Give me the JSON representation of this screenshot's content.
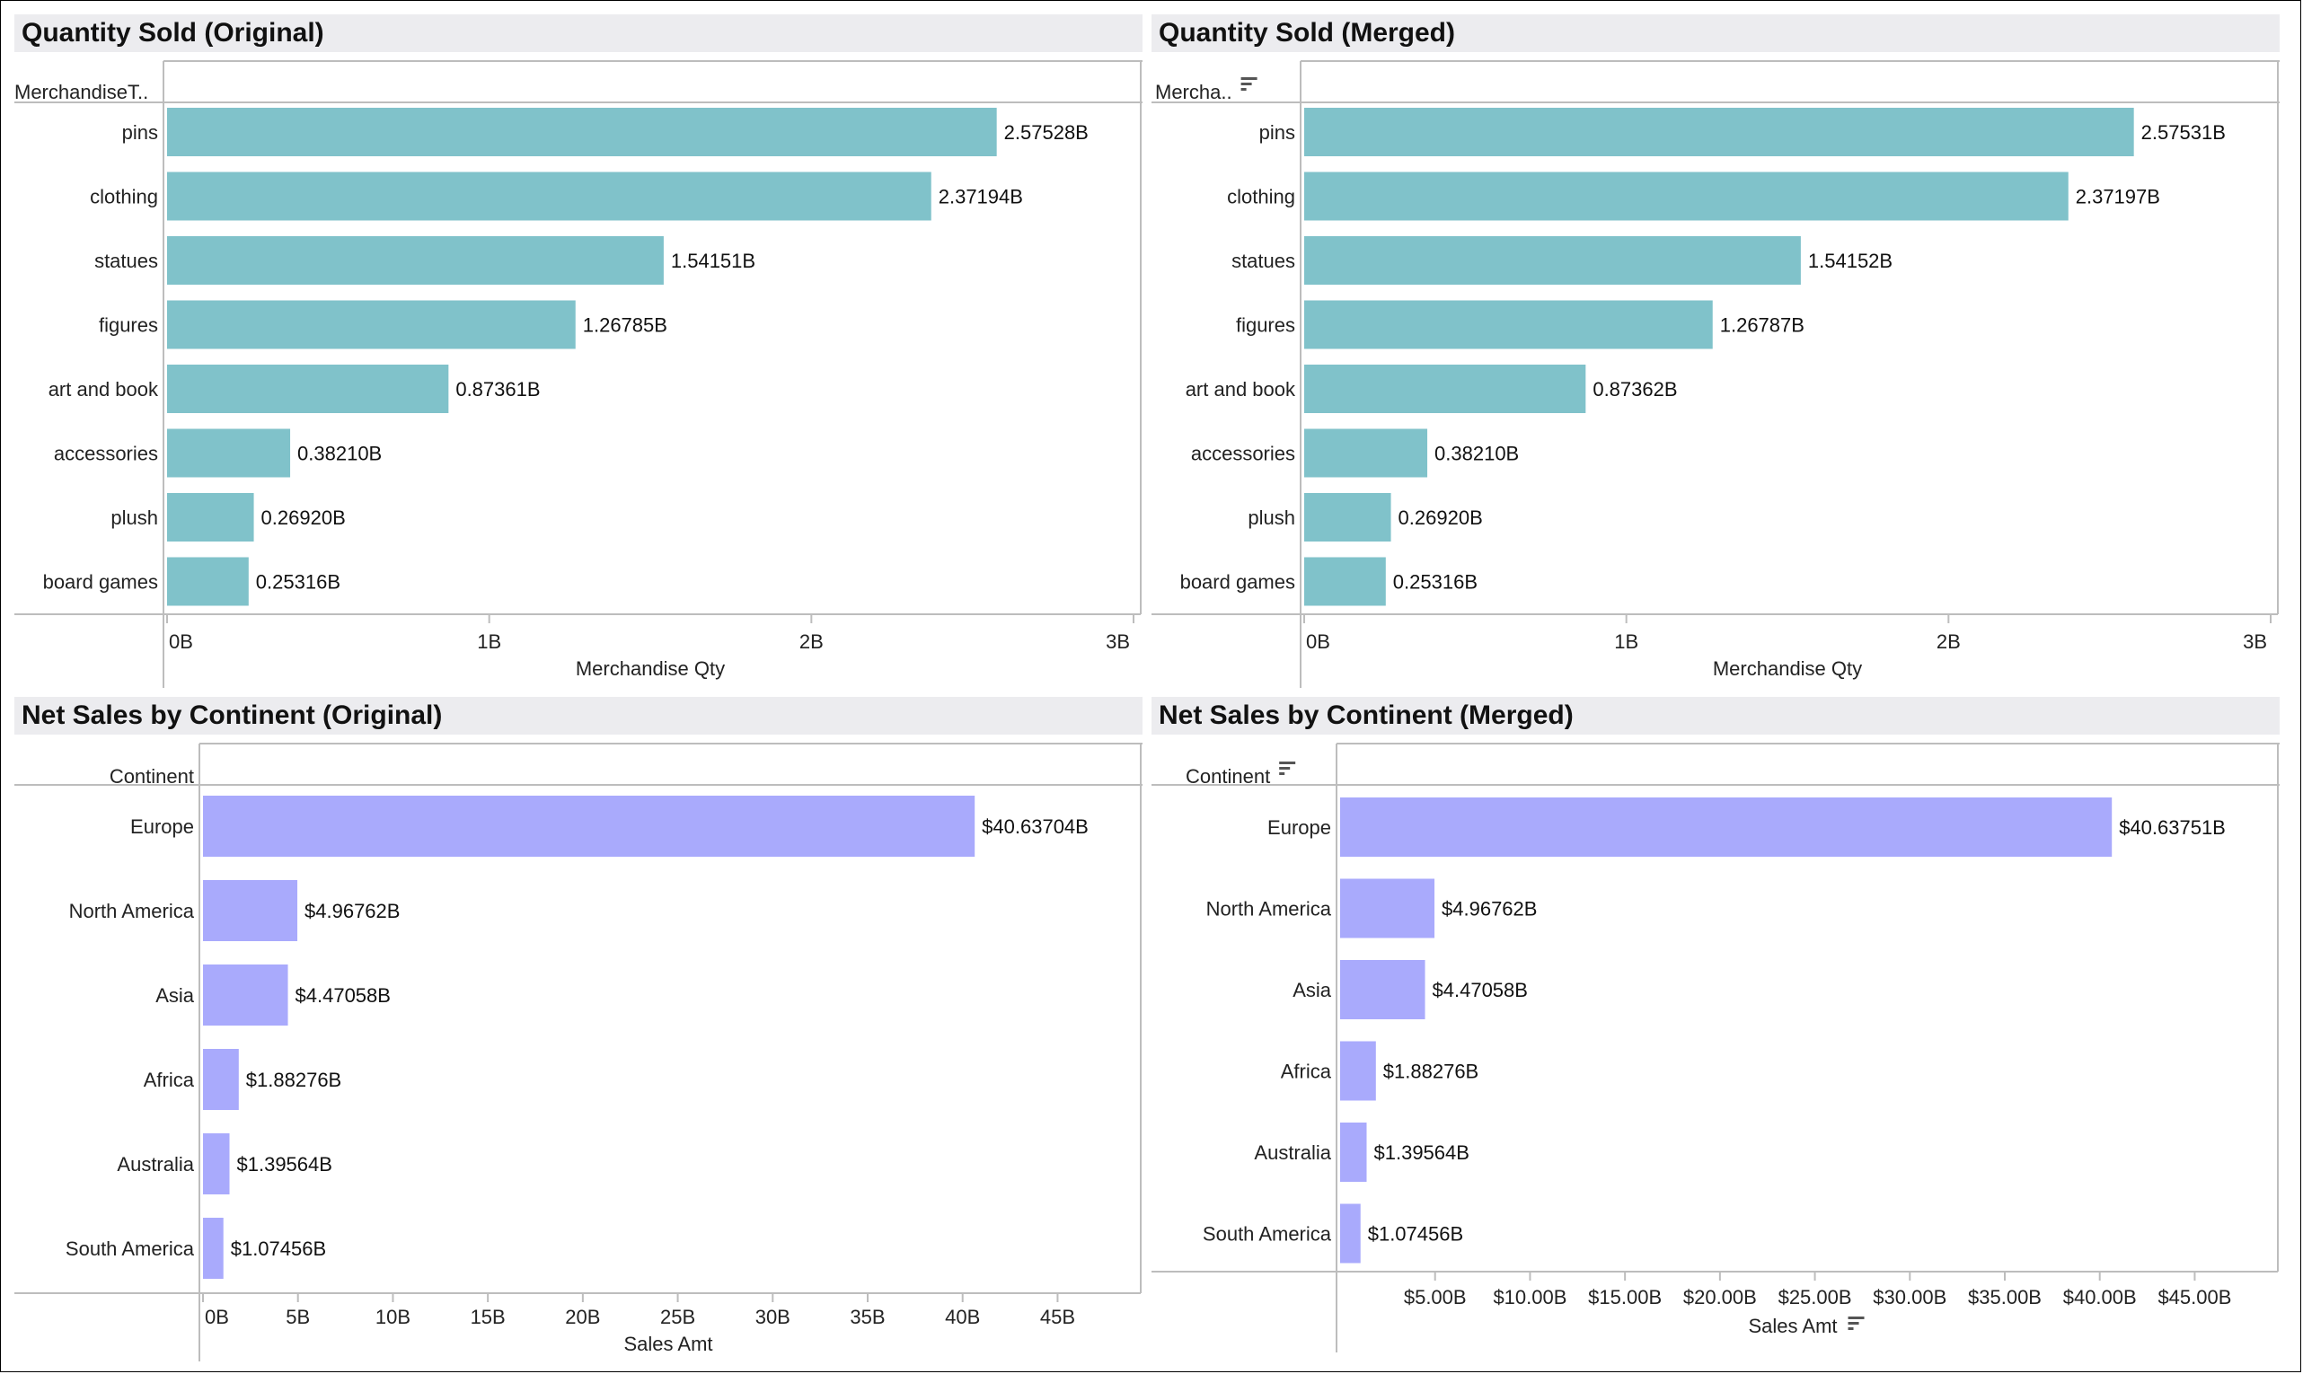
{
  "chart_data": [
    {
      "id": "qty-original",
      "type": "bar",
      "title": "Quantity Sold (Original)",
      "header": "MerchandiseT..",
      "header_sort_icon": false,
      "categories": [
        "pins",
        "clothing",
        "statues",
        "figures",
        "art and book",
        "accessories",
        "plush",
        "board games"
      ],
      "values": [
        2.57528,
        2.37194,
        1.54151,
        1.26785,
        0.87361,
        0.3821,
        0.2692,
        0.25316
      ],
      "value_labels": [
        "2.57528B",
        "2.37194B",
        "1.54151B",
        "1.26785B",
        "0.87361B",
        "0.38210B",
        "0.26920B",
        "0.25316B"
      ],
      "xlabel": "Merchandise Qty",
      "xlabel_sort_icon": false,
      "xlim": [
        0,
        3
      ],
      "ticks": [
        0,
        1,
        2,
        3
      ],
      "tick_labels": [
        "0B",
        "1B",
        "2B",
        "3B"
      ],
      "bar_color": "#80c2ca",
      "grid": false
    },
    {
      "id": "qty-merged",
      "type": "bar",
      "title": "Quantity Sold (Merged)",
      "header": "Mercha..",
      "header_sort_icon": true,
      "categories": [
        "pins",
        "clothing",
        "statues",
        "figures",
        "art and book",
        "accessories",
        "plush",
        "board games"
      ],
      "values": [
        2.57531,
        2.37197,
        1.54152,
        1.26787,
        0.87362,
        0.3821,
        0.2692,
        0.25316
      ],
      "value_labels": [
        "2.57531B",
        "2.37197B",
        "1.54152B",
        "1.26787B",
        "0.87362B",
        "0.38210B",
        "0.26920B",
        "0.25316B"
      ],
      "xlabel": "Merchandise Qty",
      "xlabel_sort_icon": false,
      "xlim": [
        0,
        3
      ],
      "ticks": [
        0,
        1,
        2,
        3
      ],
      "tick_labels": [
        "0B",
        "1B",
        "2B",
        "3B"
      ],
      "bar_color": "#80c2ca",
      "grid": false
    },
    {
      "id": "sales-original",
      "type": "bar",
      "title": "Net Sales by Continent (Original)",
      "header": "Continent",
      "header_sort_icon": false,
      "categories": [
        "Europe",
        "North America",
        "Asia",
        "Africa",
        "Australia",
        "South America"
      ],
      "values": [
        40.63704,
        4.96762,
        4.47058,
        1.88276,
        1.39564,
        1.07456
      ],
      "value_labels": [
        "$40.63704B",
        "$4.96762B",
        "$4.47058B",
        "$1.88276B",
        "$1.39564B",
        "$1.07456B"
      ],
      "xlabel": "Sales Amt",
      "xlabel_sort_icon": false,
      "xlim": [
        0,
        49
      ],
      "ticks": [
        0,
        5,
        10,
        15,
        20,
        25,
        30,
        35,
        40,
        45
      ],
      "tick_labels": [
        "0B",
        "5B",
        "10B",
        "15B",
        "20B",
        "25B",
        "30B",
        "35B",
        "40B",
        "45B"
      ],
      "bar_color": "#a9aafc",
      "grid": false
    },
    {
      "id": "sales-merged",
      "type": "bar",
      "title": "Net Sales by Continent (Merged)",
      "header": "Continent",
      "header_sort_icon": true,
      "categories": [
        "Europe",
        "North America",
        "Asia",
        "Africa",
        "Australia",
        "South America"
      ],
      "values": [
        40.63751,
        4.96762,
        4.47058,
        1.88276,
        1.39564,
        1.07456
      ],
      "value_labels": [
        "$40.63751B",
        "$4.96762B",
        "$4.47058B",
        "$1.88276B",
        "$1.39564B",
        "$1.07456B"
      ],
      "xlabel": "Sales Amt",
      "xlabel_sort_icon": true,
      "xlim": [
        0,
        49
      ],
      "ticks": [
        5,
        10,
        15,
        20,
        25,
        30,
        35,
        40,
        45
      ],
      "tick_labels": [
        "$5.00B",
        "$10.00B",
        "$15.00B",
        "$20.00B",
        "$25.00B",
        "$30.00B",
        "$35.00B",
        "$40.00B",
        "$45.00B"
      ],
      "bar_color": "#a9aafc",
      "grid": false
    }
  ]
}
